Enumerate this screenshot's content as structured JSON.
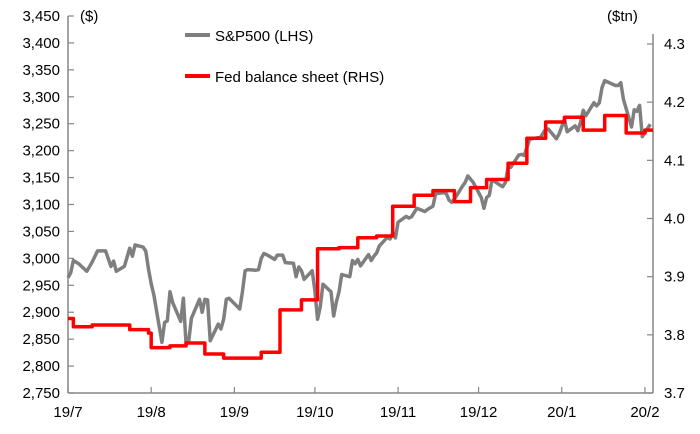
{
  "chart_data": {
    "type": "line",
    "title": "",
    "left_axis": {
      "title": "($)",
      "ylim": [
        2750,
        3450
      ],
      "ticks": [
        "2,750",
        "2,800",
        "2,850",
        "2,900",
        "2,950",
        "3,000",
        "3,050",
        "3,100",
        "3,150",
        "3,200",
        "3,250",
        "3,300",
        "3,350",
        "3,400",
        "3,450"
      ],
      "tick_values": [
        2750,
        2800,
        2850,
        2900,
        2950,
        3000,
        3050,
        3100,
        3150,
        3200,
        3250,
        3300,
        3350,
        3400,
        3450
      ]
    },
    "right_axis": {
      "title": "($tn)",
      "ylim": [
        3.7,
        4.3
      ],
      "ticks": [
        "3.7",
        "3.8",
        "3.9",
        "4.0",
        "4.1",
        "4.2",
        "4.3"
      ],
      "tick_values": [
        3.7,
        3.8,
        3.9,
        4.0,
        4.1,
        4.2,
        4.3
      ]
    },
    "x_axis": {
      "range": [
        "2019-07-01",
        "2020-02-04"
      ],
      "ticks": [
        "19/7",
        "19/8",
        "19/9",
        "19/10",
        "19/11",
        "19/12",
        "20/1",
        "20/2"
      ],
      "tick_dates": [
        "2019-07-01",
        "2019-08-01",
        "2019-09-01",
        "2019-10-01",
        "2019-11-01",
        "2019-12-01",
        "2020-01-01",
        "2020-02-01"
      ]
    },
    "grid": false,
    "legend": "top-left",
    "series": [
      {
        "name": "S&P500 (LHS)",
        "axis": "left",
        "color": "#7f7f7f",
        "step": false,
        "points": [
          [
            "2019-07-01",
            2964
          ],
          [
            "2019-07-02",
            2973
          ],
          [
            "2019-07-03",
            2996
          ],
          [
            "2019-07-05",
            2990
          ],
          [
            "2019-07-08",
            2976
          ],
          [
            "2019-07-10",
            2993
          ],
          [
            "2019-07-12",
            3014
          ],
          [
            "2019-07-15",
            3014
          ],
          [
            "2019-07-17",
            2985
          ],
          [
            "2019-07-18",
            2995
          ],
          [
            "2019-07-19",
            2976
          ],
          [
            "2019-07-22",
            2985
          ],
          [
            "2019-07-24",
            3019
          ],
          [
            "2019-07-25",
            3004
          ],
          [
            "2019-07-26",
            3025
          ],
          [
            "2019-07-29",
            3021
          ],
          [
            "2019-07-30",
            3013
          ],
          [
            "2019-07-31",
            2980
          ],
          [
            "2019-08-01",
            2953
          ],
          [
            "2019-08-02",
            2932
          ],
          [
            "2019-08-05",
            2844
          ],
          [
            "2019-08-06",
            2881
          ],
          [
            "2019-08-07",
            2884
          ],
          [
            "2019-08-08",
            2938
          ],
          [
            "2019-08-09",
            2918
          ],
          [
            "2019-08-12",
            2883
          ],
          [
            "2019-08-13",
            2926
          ],
          [
            "2019-08-14",
            2840
          ],
          [
            "2019-08-15",
            2847
          ],
          [
            "2019-08-16",
            2889
          ],
          [
            "2019-08-19",
            2924
          ],
          [
            "2019-08-20",
            2900
          ],
          [
            "2019-08-21",
            2924
          ],
          [
            "2019-08-22",
            2923
          ],
          [
            "2019-08-23",
            2847
          ],
          [
            "2019-08-26",
            2878
          ],
          [
            "2019-08-27",
            2869
          ],
          [
            "2019-08-28",
            2887
          ],
          [
            "2019-08-29",
            2924
          ],
          [
            "2019-08-30",
            2926
          ],
          [
            "2019-09-03",
            2906
          ],
          [
            "2019-09-04",
            2938
          ],
          [
            "2019-09-05",
            2977
          ],
          [
            "2019-09-06",
            2979
          ],
          [
            "2019-09-09",
            2978
          ],
          [
            "2019-09-10",
            2979
          ],
          [
            "2019-09-11",
            3000
          ],
          [
            "2019-09-12",
            3009
          ],
          [
            "2019-09-13",
            3007
          ],
          [
            "2019-09-16",
            2998
          ],
          [
            "2019-09-17",
            3006
          ],
          [
            "2019-09-18",
            3006
          ],
          [
            "2019-09-19",
            3006
          ],
          [
            "2019-09-20",
            2992
          ],
          [
            "2019-09-23",
            2991
          ],
          [
            "2019-09-24",
            2966
          ],
          [
            "2019-09-25",
            2984
          ],
          [
            "2019-09-26",
            2977
          ],
          [
            "2019-09-27",
            2961
          ],
          [
            "2019-09-30",
            2977
          ],
          [
            "2019-10-01",
            2940
          ],
          [
            "2019-10-02",
            2887
          ],
          [
            "2019-10-03",
            2910
          ],
          [
            "2019-10-04",
            2952
          ],
          [
            "2019-10-07",
            2938
          ],
          [
            "2019-10-08",
            2893
          ],
          [
            "2019-10-09",
            2919
          ],
          [
            "2019-10-10",
            2938
          ],
          [
            "2019-10-11",
            2970
          ],
          [
            "2019-10-14",
            2966
          ],
          [
            "2019-10-15",
            2996
          ],
          [
            "2019-10-16",
            2990
          ],
          [
            "2019-10-17",
            2998
          ],
          [
            "2019-10-18",
            2986
          ],
          [
            "2019-10-21",
            3007
          ],
          [
            "2019-10-22",
            2996
          ],
          [
            "2019-10-23",
            3004
          ],
          [
            "2019-10-24",
            3010
          ],
          [
            "2019-10-25",
            3023
          ],
          [
            "2019-10-28",
            3039
          ],
          [
            "2019-10-29",
            3036
          ],
          [
            "2019-10-30",
            3047
          ],
          [
            "2019-10-31",
            3038
          ],
          [
            "2019-11-01",
            3067
          ],
          [
            "2019-11-04",
            3078
          ],
          [
            "2019-11-05",
            3075
          ],
          [
            "2019-11-06",
            3077
          ],
          [
            "2019-11-07",
            3085
          ],
          [
            "2019-11-08",
            3093
          ],
          [
            "2019-11-11",
            3087
          ],
          [
            "2019-11-12",
            3091
          ],
          [
            "2019-11-13",
            3094
          ],
          [
            "2019-11-14",
            3097
          ],
          [
            "2019-11-15",
            3120
          ],
          [
            "2019-11-18",
            3122
          ],
          [
            "2019-11-19",
            3120
          ],
          [
            "2019-11-20",
            3108
          ],
          [
            "2019-11-21",
            3104
          ],
          [
            "2019-11-22",
            3110
          ],
          [
            "2019-11-25",
            3134
          ],
          [
            "2019-11-26",
            3141
          ],
          [
            "2019-11-27",
            3153
          ],
          [
            "2019-11-29",
            3141
          ],
          [
            "2019-12-02",
            3113
          ],
          [
            "2019-12-03",
            3093
          ],
          [
            "2019-12-04",
            3113
          ],
          [
            "2019-12-05",
            3117
          ],
          [
            "2019-12-06",
            3146
          ],
          [
            "2019-12-09",
            3136
          ],
          [
            "2019-12-10",
            3133
          ],
          [
            "2019-12-11",
            3141
          ],
          [
            "2019-12-12",
            3169
          ],
          [
            "2019-12-13",
            3169
          ],
          [
            "2019-12-16",
            3192
          ],
          [
            "2019-12-17",
            3193
          ],
          [
            "2019-12-18",
            3191
          ],
          [
            "2019-12-19",
            3206
          ],
          [
            "2019-12-20",
            3221
          ],
          [
            "2019-12-23",
            3224
          ],
          [
            "2019-12-24",
            3224
          ],
          [
            "2019-12-26",
            3240
          ],
          [
            "2019-12-27",
            3240
          ],
          [
            "2019-12-30",
            3222
          ],
          [
            "2019-12-31",
            3231
          ],
          [
            "2020-01-02",
            3258
          ],
          [
            "2020-01-03",
            3235
          ],
          [
            "2020-01-06",
            3246
          ],
          [
            "2020-01-07",
            3237
          ],
          [
            "2020-01-08",
            3253
          ],
          [
            "2020-01-09",
            3275
          ],
          [
            "2020-01-10",
            3265
          ],
          [
            "2020-01-13",
            3289
          ],
          [
            "2020-01-14",
            3283
          ],
          [
            "2020-01-15",
            3289
          ],
          [
            "2020-01-16",
            3317
          ],
          [
            "2020-01-17",
            3330
          ],
          [
            "2020-01-21",
            3321
          ],
          [
            "2020-01-22",
            3321
          ],
          [
            "2020-01-23",
            3326
          ],
          [
            "2020-01-24",
            3295
          ],
          [
            "2020-01-27",
            3244
          ],
          [
            "2020-01-28",
            3276
          ],
          [
            "2020-01-29",
            3273
          ],
          [
            "2020-01-30",
            3284
          ],
          [
            "2020-01-31",
            3226
          ],
          [
            "2020-02-03",
            3249
          ]
        ]
      },
      {
        "name": "Fed balance sheet (RHS)",
        "axis": "right",
        "color": "#ff0000",
        "step": true,
        "points": [
          [
            "2019-07-01",
            3.828
          ],
          [
            "2019-07-03",
            3.814
          ],
          [
            "2019-07-10",
            3.817
          ],
          [
            "2019-07-24",
            3.809
          ],
          [
            "2019-07-31",
            3.803
          ],
          [
            "2019-08-01",
            3.778
          ],
          [
            "2019-08-08",
            3.781
          ],
          [
            "2019-08-14",
            3.786
          ],
          [
            "2019-08-21",
            3.767
          ],
          [
            "2019-08-28",
            3.76
          ],
          [
            "2019-09-11",
            3.77
          ],
          [
            "2019-09-18",
            3.843
          ],
          [
            "2019-09-26",
            3.86
          ],
          [
            "2019-10-02",
            3.948
          ],
          [
            "2019-10-10",
            3.95
          ],
          [
            "2019-10-17",
            3.967
          ],
          [
            "2019-10-24",
            3.97
          ],
          [
            "2019-10-30",
            4.021
          ],
          [
            "2019-11-07",
            4.04
          ],
          [
            "2019-11-14",
            4.048
          ],
          [
            "2019-11-22",
            4.029
          ],
          [
            "2019-11-28",
            4.053
          ],
          [
            "2019-12-04",
            4.067
          ],
          [
            "2019-12-12",
            4.095
          ],
          [
            "2019-12-19",
            4.138
          ],
          [
            "2019-12-26",
            4.166
          ],
          [
            "2020-01-02",
            4.174
          ],
          [
            "2020-01-09",
            4.152
          ],
          [
            "2020-01-17",
            4.177
          ],
          [
            "2020-01-25",
            4.147
          ],
          [
            "2020-02-01",
            4.152
          ],
          [
            "2020-02-04",
            4.152
          ]
        ]
      }
    ]
  }
}
